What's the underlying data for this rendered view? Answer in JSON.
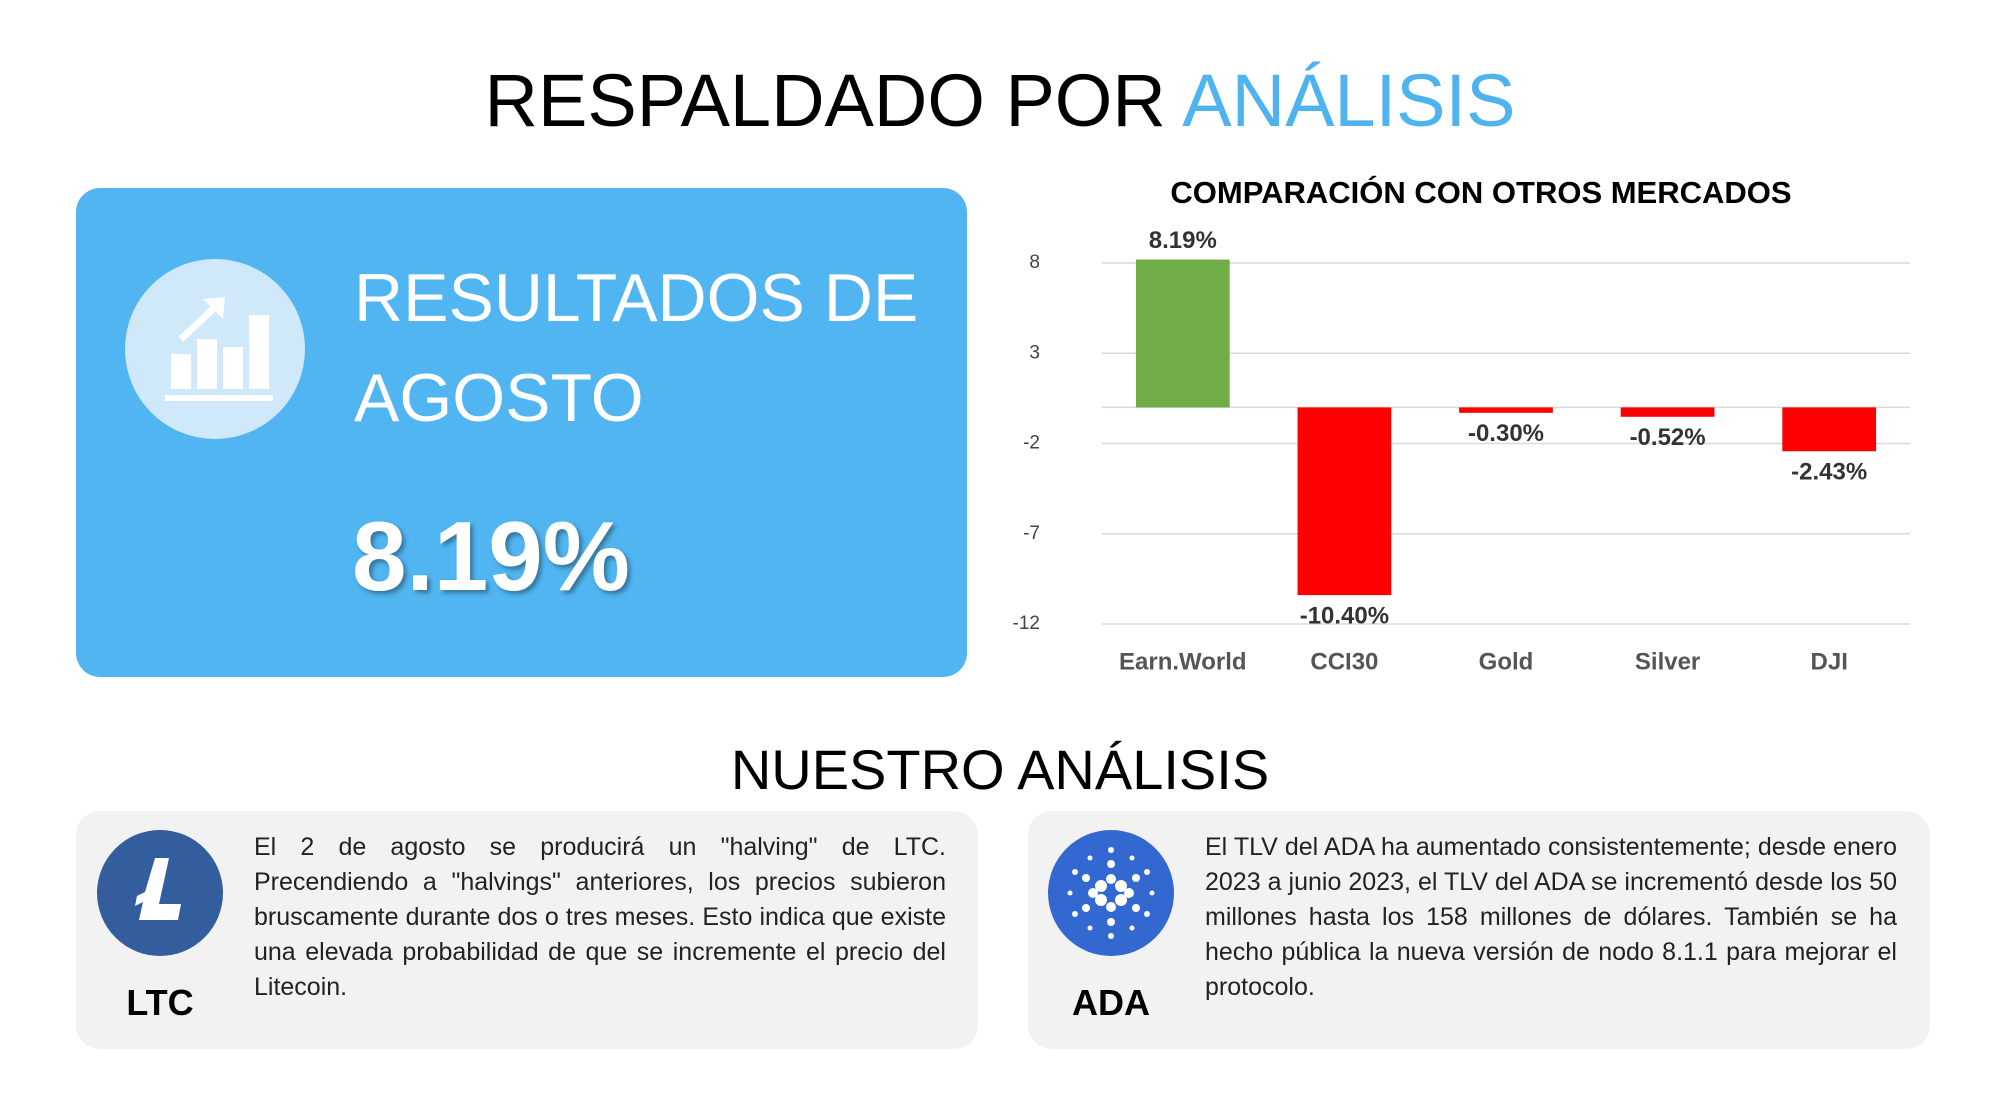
{
  "header": {
    "title": "RESPALDADO POR",
    "title_highlight": "ANÁLISIS"
  },
  "summary_card": {
    "title": "RESULTADOS DE AGOSTO",
    "value": "8.19%"
  },
  "chart_data": {
    "type": "bar",
    "title": "COMPARACIÓN CON OTROS MERCADOS",
    "categories": [
      "Earn.World",
      "CCI30",
      "Gold",
      "Silver",
      "DJI"
    ],
    "values": [
      8.19,
      -10.4,
      -0.3,
      -0.52,
      -2.43
    ],
    "value_labels": [
      "8.19%",
      "-10.40%",
      "-0.30%",
      "-0.52%",
      "-2.43%"
    ],
    "colors": [
      "#70ad47",
      "#ff0000",
      "#ff0000",
      "#ff0000",
      "#ff0000"
    ],
    "ylim": [
      -12,
      8
    ],
    "yticks": [
      8,
      3,
      -2,
      -7,
      -12
    ],
    "grid": true
  },
  "analysis": {
    "title": "NUESTRO ANÁLISIS",
    "cards": [
      {
        "label": "LTC",
        "text": "El 2 de agosto se producirá un \"halving\" de LTC. Precendiendo a \"halvings\" anteriores, los precios subieron bruscamente durante dos o tres meses. Esto indica que existe una elevada probabilidad de que se incremente el precio del Litecoin."
      },
      {
        "label": "ADA",
        "text": "El TLV del ADA ha aumentado consistentemente; desde enero 2023 a junio 2023, el TLV del ADA se incrementó desde los 50 millones hasta los 158 millones de dólares. También se ha hecho pública la nueva versión de nodo 8.1.1 para mejorar el protocolo."
      }
    ]
  }
}
